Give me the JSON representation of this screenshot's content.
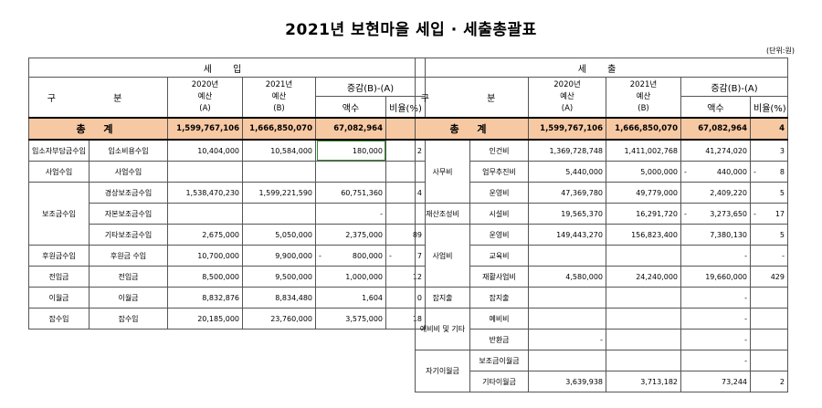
{
  "title": "2021년 보현마을 세입 · 세출총괄표",
  "unit": "(단위:원)",
  "income": {
    "section": "세 입",
    "headers": {
      "gubun": "구 분",
      "y2020": "2020년\n예산\n(A)",
      "y2021": "2021년\n예산\n(B)",
      "diff": "증감(B)-(A)",
      "amount": "액수",
      "ratio": "비율(%)"
    },
    "total": {
      "label": "총 계",
      "a": "1,599,767,106",
      "b": "1,666,850,070",
      "diff": "67,082,964",
      "ratio": "4"
    },
    "rows": [
      {
        "cat": "입소자부담금수입",
        "item": "입소비용수입",
        "a": "10,404,000",
        "b": "10,584,000",
        "diff": "180,000",
        "ratio": "2"
      },
      {
        "cat": "사업수입",
        "item": "사업수입",
        "a": "",
        "b": "",
        "diff": "",
        "ratio": ""
      },
      {
        "cat": "보조금수입",
        "item": "경상보조금수입",
        "a": "1,538,470,230",
        "b": "1,599,221,590",
        "diff": "60,751,360",
        "ratio": "4"
      },
      {
        "cat": "",
        "item": "자본보조금수입",
        "a": "",
        "b": "",
        "diff": "-",
        "ratio": ""
      },
      {
        "cat": "",
        "item": "기타보조금수입",
        "a": "2,675,000",
        "b": "5,050,000",
        "diff": "2,375,000",
        "ratio": "89"
      },
      {
        "cat": "후원금수입",
        "item": "후원금 수입",
        "a": "10,700,000",
        "b": "9,900,000",
        "diff": "800,000",
        "ratio": "7",
        "neg": true
      },
      {
        "cat": "전입금",
        "item": "전입금",
        "a": "8,500,000",
        "b": "9,500,000",
        "diff": "1,000,000",
        "ratio": "12"
      },
      {
        "cat": "이월금",
        "item": "이월금",
        "a": "8,832,876",
        "b": "8,834,480",
        "diff": "1,604",
        "ratio": "0"
      },
      {
        "cat": "잡수입",
        "item": "잡수입",
        "a": "20,185,000",
        "b": "23,760,000",
        "diff": "3,575,000",
        "ratio": "18"
      }
    ]
  },
  "expense": {
    "section": "세 출",
    "headers": {
      "gubun": "구 분",
      "y2020": "2020년\n예산\n(A)",
      "y2021": "2021년\n예산\n(B)",
      "diff": "증감(B)-(A)",
      "amount": "액수",
      "ratio": "비율(%)"
    },
    "total": {
      "label": "총 계",
      "a": "1,599,767,106",
      "b": "1,666,850,070",
      "diff": "67,082,964",
      "ratio": "4"
    },
    "rows": [
      {
        "cat": "사무비",
        "item": "인건비",
        "a": "1,369,728,748",
        "b": "1,411,002,768",
        "diff": "41,274,020",
        "ratio": "3"
      },
      {
        "cat": "",
        "item": "업무추진비",
        "a": "5,440,000",
        "b": "5,000,000",
        "diff": "440,000",
        "ratio": "8",
        "neg": true
      },
      {
        "cat": "",
        "item": "운영비",
        "a": "47,369,780",
        "b": "49,779,000",
        "diff": "2,409,220",
        "ratio": "5"
      },
      {
        "cat": "재산조성비",
        "item": "시설비",
        "a": "19,565,370",
        "b": "16,291,720",
        "diff": "3,273,650",
        "ratio": "17",
        "neg": true
      },
      {
        "cat": "사업비",
        "item": "운영비",
        "a": "149,443,270",
        "b": "156,823,400",
        "diff": "7,380,130",
        "ratio": "5"
      },
      {
        "cat": "",
        "item": "교육비",
        "a": "",
        "b": "",
        "diff": "-",
        "ratio": "-"
      },
      {
        "cat": "",
        "item": "재활사업비",
        "a": "4,580,000",
        "b": "24,240,000",
        "diff": "19,660,000",
        "ratio": "429"
      },
      {
        "cat": "잡지출",
        "item": "잡지출",
        "a": "",
        "b": "",
        "diff": "-",
        "ratio": ""
      },
      {
        "cat": "예비비 및 기타",
        "item": "예비비",
        "a": "",
        "b": "",
        "diff": "-",
        "ratio": ""
      },
      {
        "cat": "",
        "item": "반환금",
        "a": "-",
        "b": "",
        "diff": "-",
        "ratio": ""
      },
      {
        "cat": "자기이월금",
        "item": "보조금이월금",
        "a": "",
        "b": "",
        "diff": "-",
        "ratio": ""
      },
      {
        "cat": "",
        "item": "기타이월금",
        "a": "3,639,938",
        "b": "3,713,182",
        "diff": "73,244",
        "ratio": "2"
      }
    ]
  }
}
